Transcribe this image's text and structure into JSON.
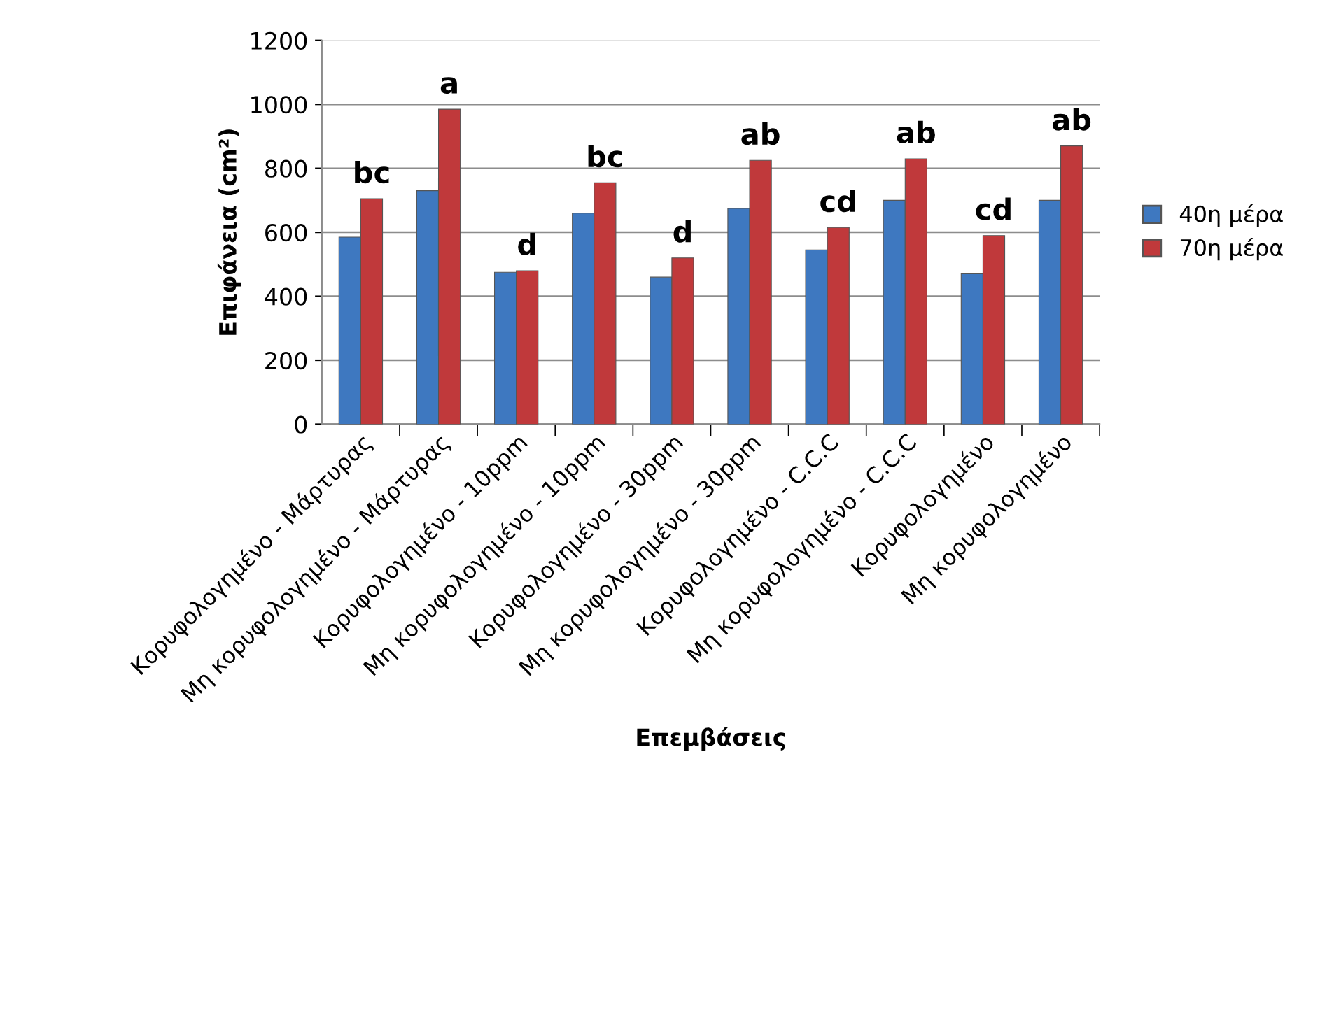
{
  "chart_data": {
    "type": "bar",
    "xlabel": "Επεμβάσεις",
    "ylabel": "Επιφάνεια (cm²)",
    "categories": [
      "Κορυφολογημένο - Μάρτυρας",
      "Μη κορυφολογημένο - Μάρτυρας",
      "Κορυφολογημένο - 10ppm",
      "Μη κορυφολογημένο - 10ppm",
      "Κορυφολογημένο - 30ppm",
      "Μη κορυφολογημένο - 30ppm",
      "Κορυφολογημένο - C.C.C",
      "Μη κορυφολογημένο - C.C.C",
      "Κορυφολογημένο",
      "Μη κορυφολογημένο"
    ],
    "series": [
      {
        "name": "40η μέρα",
        "color": "#3e78c0",
        "values": [
          585,
          730,
          475,
          660,
          460,
          675,
          545,
          700,
          470,
          700
        ]
      },
      {
        "name": "70η μέρα",
        "color": "#c0393b",
        "values": [
          705,
          985,
          480,
          755,
          520,
          825,
          615,
          830,
          590,
          870
        ]
      }
    ],
    "ylim": [
      0,
      1200
    ],
    "yticks": [
      0,
      200,
      400,
      600,
      800,
      1000,
      1200
    ],
    "grid": "y",
    "legend": "right",
    "annotations": [
      {
        "text": "bc",
        "x": "Κορυφολογημένο - Μάρτυρας",
        "y": 705
      },
      {
        "text": "a",
        "x": "Μη κορυφολογημένο - Μάρτυρας",
        "y": 985
      },
      {
        "text": "d",
        "x": "Κορυφολογημένο - 10ppm",
        "y": 480
      },
      {
        "text": "bc",
        "x": "Μη κορυφολογημένο - 10ppm",
        "y": 755
      },
      {
        "text": "d",
        "x": "Κορυφολογημένο - 30ppm",
        "y": 520
      },
      {
        "text": "ab",
        "x": "Μη κορυφολογημένο - 30ppm",
        "y": 825
      },
      {
        "text": "cd",
        "x": "Κορυφολογημένο - C.C.C",
        "y": 615
      },
      {
        "text": "ab",
        "x": "Μη κορυφολογημένο - C.C.C",
        "y": 830
      },
      {
        "text": "cd",
        "x": "Κορυφολογημένο",
        "y": 590
      },
      {
        "text": "ab",
        "x": "Μη κορυφολογημένο",
        "y": 870
      }
    ]
  }
}
